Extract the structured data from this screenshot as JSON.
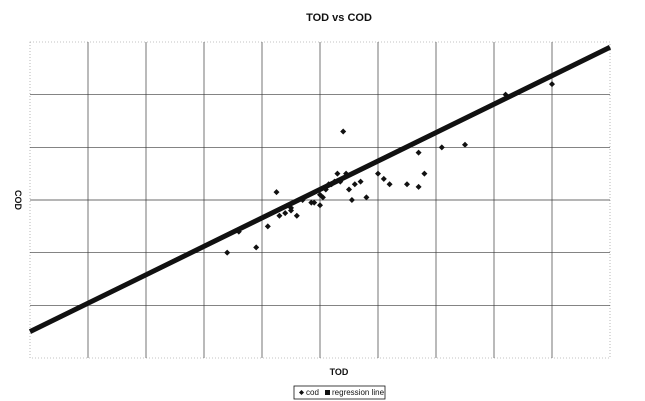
{
  "chart_data": {
    "type": "scatter",
    "title": "TOD vs COD",
    "xlabel": "TOD",
    "ylabel": "COD",
    "xlim": [
      0,
      10
    ],
    "ylim": [
      0,
      6
    ],
    "grid": true,
    "legend_position": "bottom",
    "colors": {
      "points": "#111111",
      "line": "#111111",
      "grid": "#3a3a3a"
    },
    "series": [
      {
        "name": "cod",
        "marker": "diamond",
        "points": [
          [
            3.6,
            2.4
          ],
          [
            4.1,
            2.5
          ],
          [
            4.3,
            2.7
          ],
          [
            4.4,
            2.75
          ],
          [
            4.5,
            2.8
          ],
          [
            4.6,
            2.7
          ],
          [
            4.7,
            3.0
          ],
          [
            4.9,
            2.95
          ],
          [
            5.0,
            2.9
          ],
          [
            5.05,
            3.05
          ],
          [
            5.1,
            3.2
          ],
          [
            5.0,
            3.1
          ],
          [
            5.15,
            3.3
          ],
          [
            5.2,
            3.3
          ],
          [
            5.3,
            3.5
          ],
          [
            5.35,
            3.35
          ],
          [
            5.4,
            4.3
          ],
          [
            5.45,
            3.5
          ],
          [
            5.5,
            3.2
          ],
          [
            5.55,
            3.0
          ],
          [
            5.6,
            3.3
          ],
          [
            5.7,
            3.35
          ],
          [
            5.8,
            3.05
          ],
          [
            6.0,
            3.5
          ],
          [
            6.2,
            3.3
          ],
          [
            6.5,
            3.3
          ],
          [
            6.7,
            3.9
          ],
          [
            6.8,
            3.5
          ],
          [
            6.7,
            3.25
          ],
          [
            7.1,
            4.0
          ],
          [
            7.5,
            4.05
          ],
          [
            8.2,
            5.0
          ],
          [
            9.0,
            5.2
          ],
          [
            3.4,
            2.0
          ],
          [
            3.9,
            2.1
          ],
          [
            4.25,
            3.15
          ],
          [
            4.5,
            2.85
          ],
          [
            4.85,
            2.95
          ],
          [
            5.25,
            3.35
          ],
          [
            6.1,
            3.4
          ]
        ]
      },
      {
        "name": "regression line",
        "marker": "square",
        "x": [
          0,
          10
        ],
        "y": [
          0.5,
          5.9
        ]
      }
    ]
  }
}
